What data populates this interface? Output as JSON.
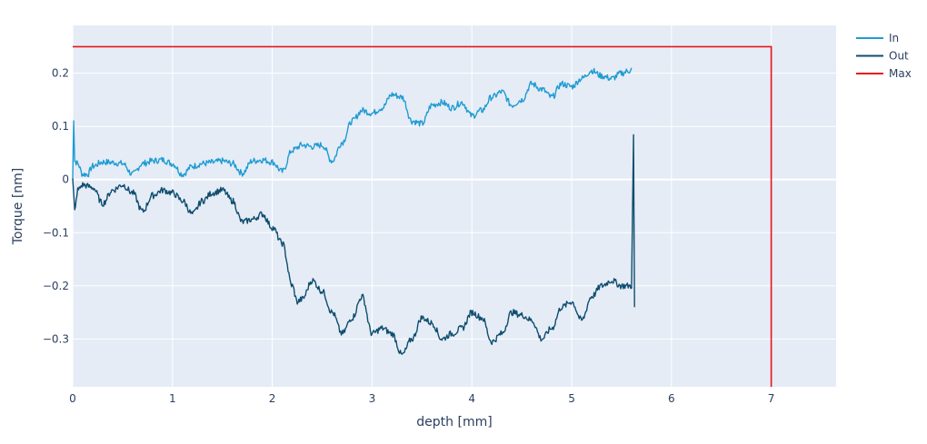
{
  "chart_data": {
    "type": "line",
    "title": "",
    "xlabel": "depth [mm]",
    "ylabel": "Torque [nm]",
    "xlim": [
      0,
      7.65
    ],
    "ylim": [
      -0.39,
      0.29
    ],
    "x_ticks": [
      0,
      1,
      2,
      3,
      4,
      5,
      6,
      7
    ],
    "x_tick_labels": [
      "0",
      "1",
      "2",
      "3",
      "4",
      "5",
      "6",
      "7"
    ],
    "y_ticks": [
      -0.3,
      -0.2,
      -0.1,
      0,
      0.1,
      0.2
    ],
    "y_tick_labels": [
      "−0.3",
      "−0.2",
      "−0.1",
      "0",
      "0.1",
      "0.2"
    ],
    "grid": true,
    "legend_position": "top-right",
    "series": [
      {
        "name": "In",
        "color": "#1f9bd2",
        "x": [
          0,
          0.01,
          0.02,
          0.05,
          0.1,
          0.15,
          0.2,
          0.3,
          0.4,
          0.5,
          0.6,
          0.7,
          0.8,
          0.9,
          1.0,
          1.1,
          1.2,
          1.3,
          1.4,
          1.5,
          1.6,
          1.7,
          1.8,
          1.9,
          2.0,
          2.1,
          2.2,
          2.3,
          2.4,
          2.5,
          2.6,
          2.7,
          2.8,
          2.9,
          3.0,
          3.1,
          3.2,
          3.3,
          3.4,
          3.5,
          3.6,
          3.7,
          3.8,
          3.9,
          4.0,
          4.1,
          4.2,
          4.3,
          4.4,
          4.5,
          4.6,
          4.7,
          4.8,
          4.9,
          5.0,
          5.1,
          5.2,
          5.3,
          5.4,
          5.5,
          5.58,
          5.6
        ],
        "y": [
          0.0,
          0.115,
          0.035,
          0.03,
          0.01,
          0.01,
          0.025,
          0.033,
          0.032,
          0.03,
          0.01,
          0.03,
          0.035,
          0.037,
          0.03,
          0.01,
          0.025,
          0.03,
          0.032,
          0.035,
          0.03,
          0.012,
          0.035,
          0.037,
          0.033,
          0.015,
          0.055,
          0.065,
          0.062,
          0.065,
          0.035,
          0.07,
          0.11,
          0.13,
          0.125,
          0.135,
          0.16,
          0.155,
          0.11,
          0.105,
          0.14,
          0.145,
          0.135,
          0.145,
          0.12,
          0.13,
          0.155,
          0.165,
          0.14,
          0.15,
          0.18,
          0.17,
          0.155,
          0.18,
          0.175,
          0.19,
          0.205,
          0.195,
          0.19,
          0.2,
          0.205,
          0.21
        ]
      },
      {
        "name": "Out",
        "color": "#0e4d6e",
        "x": [
          0,
          0.02,
          0.05,
          0.1,
          0.2,
          0.3,
          0.4,
          0.5,
          0.6,
          0.7,
          0.8,
          0.9,
          1.0,
          1.1,
          1.2,
          1.3,
          1.4,
          1.5,
          1.6,
          1.7,
          1.8,
          1.9,
          2.0,
          2.1,
          2.2,
          2.25,
          2.3,
          2.4,
          2.5,
          2.6,
          2.7,
          2.8,
          2.9,
          3.0,
          3.1,
          3.2,
          3.3,
          3.4,
          3.5,
          3.6,
          3.7,
          3.8,
          3.9,
          4.0,
          4.1,
          4.2,
          4.3,
          4.4,
          4.5,
          4.6,
          4.7,
          4.8,
          4.9,
          5.0,
          5.1,
          5.2,
          5.3,
          5.4,
          5.5,
          5.6,
          5.62,
          5.63
        ],
        "y": [
          0.0,
          -0.06,
          -0.02,
          -0.01,
          -0.015,
          -0.045,
          -0.02,
          -0.01,
          -0.025,
          -0.06,
          -0.03,
          -0.02,
          -0.025,
          -0.04,
          -0.065,
          -0.04,
          -0.025,
          -0.02,
          -0.04,
          -0.08,
          -0.075,
          -0.065,
          -0.09,
          -0.12,
          -0.2,
          -0.23,
          -0.225,
          -0.19,
          -0.21,
          -0.25,
          -0.29,
          -0.26,
          -0.22,
          -0.29,
          -0.28,
          -0.29,
          -0.33,
          -0.3,
          -0.26,
          -0.27,
          -0.3,
          -0.29,
          -0.28,
          -0.25,
          -0.26,
          -0.305,
          -0.29,
          -0.25,
          -0.255,
          -0.265,
          -0.3,
          -0.28,
          -0.24,
          -0.23,
          -0.265,
          -0.22,
          -0.2,
          -0.19,
          -0.2,
          -0.2,
          0.08,
          -0.24
        ]
      },
      {
        "name": "Max",
        "color": "#e8141a",
        "x": [
          0,
          7,
          7
        ],
        "y": [
          0.25,
          0.25,
          -0.39
        ]
      }
    ]
  }
}
